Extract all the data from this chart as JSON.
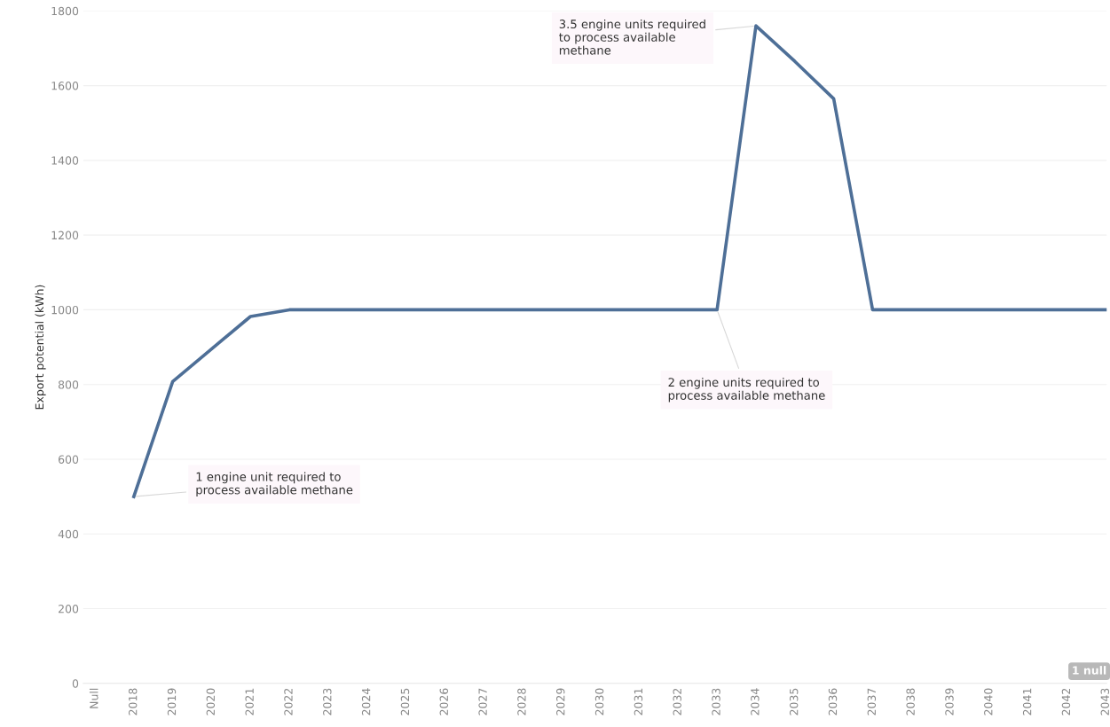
{
  "chart_data": {
    "type": "line",
    "ylabel": "Export potential (kWh)",
    "categories": [
      "Null",
      "2018",
      "2019",
      "2020",
      "2021",
      "2022",
      "2023",
      "2024",
      "2025",
      "2026",
      "2027",
      "2028",
      "2029",
      "2030",
      "2031",
      "2032",
      "2033",
      "2034",
      "2035",
      "2036",
      "2037",
      "2038",
      "2039",
      "2040",
      "2041",
      "2042",
      "2043"
    ],
    "series": [
      {
        "color": "#4e6f97",
        "values": [
          null,
          500,
          808,
          895,
          982,
          1000,
          1000,
          1000,
          1000,
          1000,
          1000,
          1000,
          1000,
          1000,
          1000,
          1000,
          1000,
          1760,
          1665,
          1565,
          1000,
          1000,
          1000,
          1000,
          1000,
          1000,
          1000
        ]
      }
    ],
    "ylim": [
      0,
      1800
    ],
    "yticks": [
      0,
      200,
      400,
      600,
      800,
      1000,
      1200,
      1400,
      1600,
      1800
    ],
    "grid": "y",
    "marker": "none",
    "line_style": "solid",
    "annotations": [
      {
        "text": "1 engine unit required to\nprocess available methane",
        "x": "2018",
        "y": 500
      },
      {
        "text": "2 engine units required to\nprocess available methane",
        "x": "2033",
        "y": 1000
      },
      {
        "text": "3.5 engine units required\nto process available\nmethane",
        "x": "2034",
        "y": 1760
      },
      "1 null"
    ]
  }
}
